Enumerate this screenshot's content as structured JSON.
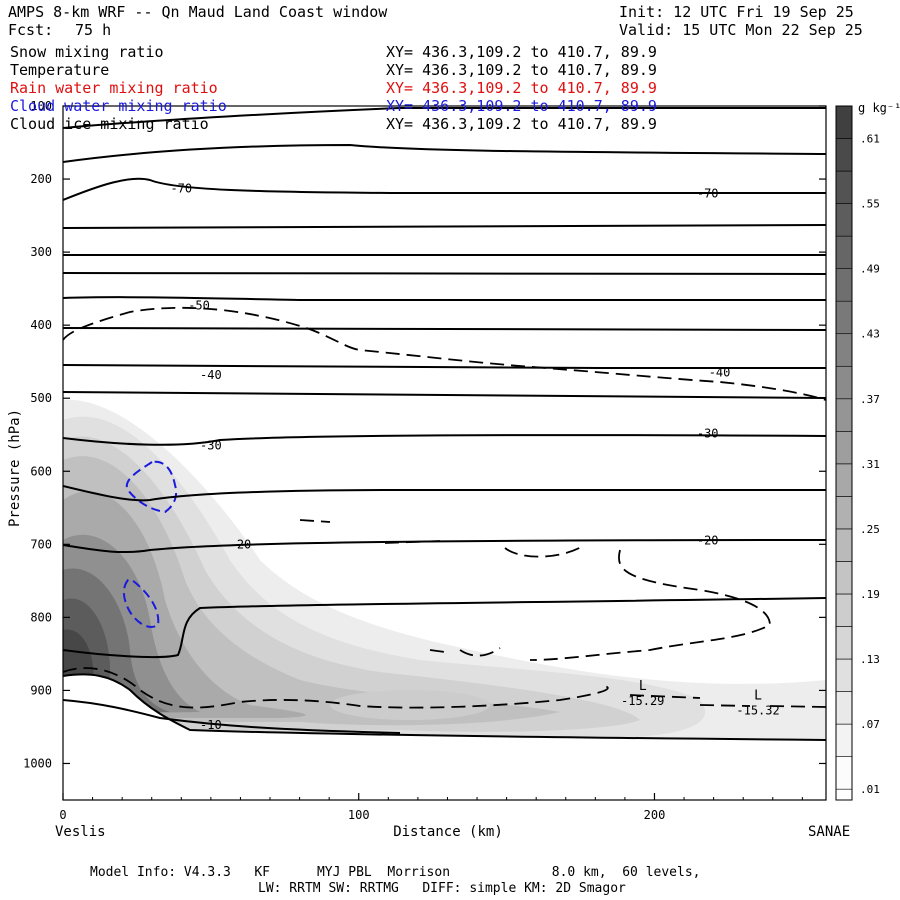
{
  "header": {
    "title": "AMPS 8-km WRF -- Qn Maud Land Coast window",
    "init": "Init: 12 UTC Fri 19 Sep 25",
    "fcst_label": "Fcst:",
    "fcst_value": "75 h",
    "valid": "Valid: 15 UTC Mon 22 Sep 25"
  },
  "fields": [
    {
      "name": "Snow mixing ratio",
      "xy": "XY= 436.3,109.2 to 410.7, 89.9",
      "color": "#000000"
    },
    {
      "name": "Temperature",
      "xy": "XY= 436.3,109.2 to 410.7, 89.9",
      "color": "#000000"
    },
    {
      "name": "Rain water mixing ratio",
      "xy": "XY= 436.3,109.2 to 410.7, 89.9",
      "color": "#e01010"
    },
    {
      "name": "Cloud water mixing ratio",
      "xy": "XY= 436.3,109.2 to 410.7, 89.9",
      "color": "#1a1adc"
    },
    {
      "name": "Cloud ice mixing ratio",
      "xy": "XY= 436.3,109.2 to 410.7, 89.9",
      "color": "#000000"
    }
  ],
  "chart_data": {
    "type": "heatmap",
    "ylabel": "Pressure (hPa)",
    "xlabel": "Distance (km)",
    "xlim": [
      0,
      258
    ],
    "ylim": [
      1050,
      100
    ],
    "yticks": [
      100,
      200,
      300,
      400,
      500,
      600,
      700,
      800,
      900,
      1000
    ],
    "xticks": [
      0,
      100,
      200
    ],
    "left_endpoint": "Veslis",
    "right_endpoint": "SANAE",
    "colorbar": {
      "unit": "g kg⁻¹",
      "levels": [
        0.01,
        0.04,
        0.07,
        0.1,
        0.13,
        0.16,
        0.19,
        0.22,
        0.25,
        0.28,
        0.31,
        0.34,
        0.37,
        0.4,
        0.43,
        0.46,
        0.49,
        0.52,
        0.55,
        0.58,
        0.61,
        0.64
      ],
      "tick_labels": [
        ".01",
        ".07",
        ".13",
        ".19",
        ".25",
        ".31",
        ".37",
        ".43",
        ".49",
        ".55",
        ".61"
      ]
    },
    "snow_mixing_ratio_max_g_per_kg": 0.64,
    "temperature_contour_labels": [
      {
        "label": "-70",
        "x_km": 40,
        "p_hpa": 213
      },
      {
        "label": "-70",
        "x_km": 218,
        "p_hpa": 220
      },
      {
        "label": "-50",
        "x_km": 46,
        "p_hpa": 373
      },
      {
        "label": "-40",
        "x_km": 50,
        "p_hpa": 468
      },
      {
        "label": "-40",
        "x_km": 222,
        "p_hpa": 465
      },
      {
        "label": "-30",
        "x_km": 50,
        "p_hpa": 565
      },
      {
        "label": "-30",
        "x_km": 218,
        "p_hpa": 548
      },
      {
        "label": "-20",
        "x_km": 60,
        "p_hpa": 700
      },
      {
        "label": "-20",
        "x_km": 218,
        "p_hpa": 695
      },
      {
        "label": "-10",
        "x_km": 50,
        "p_hpa": 947
      }
    ],
    "low_markers": [
      {
        "symbol": "L",
        "value": "-15.29",
        "x_km": 194,
        "p_hpa": 902
      },
      {
        "symbol": "L",
        "value": "-15.32",
        "x_km": 233,
        "p_hpa": 915
      }
    ]
  },
  "footer": {
    "line1": "Model Info: V4.3.3   KF      MYJ PBL  Morrison             8.0 km,  60 levels,",
    "line2": "LW: RRTM SW: RRTMG   DIFF: simple KM: 2D Smagor"
  }
}
